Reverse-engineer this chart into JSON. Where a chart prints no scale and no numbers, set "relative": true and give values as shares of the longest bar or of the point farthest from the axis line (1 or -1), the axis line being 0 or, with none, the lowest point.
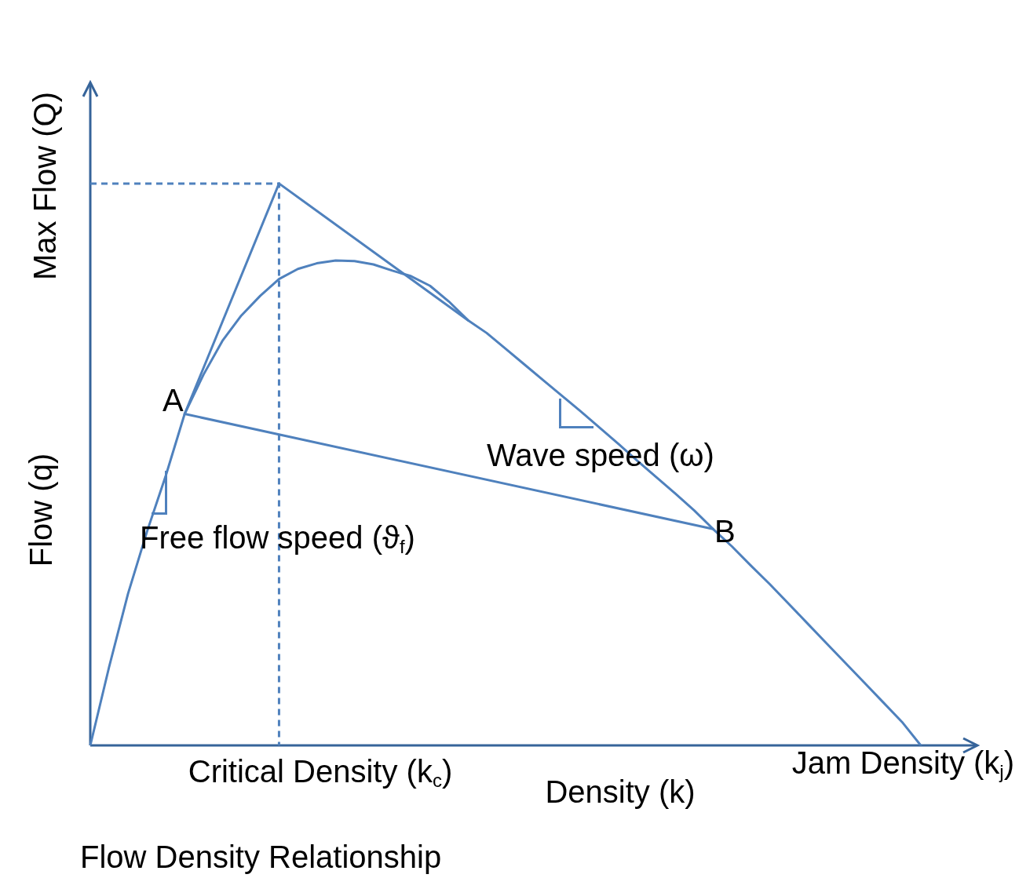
{
  "chart_data": {
    "type": "line",
    "relative": true,
    "title": "Flow Density Relationship",
    "xlabel": "Density (k)",
    "ylabel": "Flow (q)",
    "legend": false,
    "marker": "none",
    "categories": [
      null,
      null,
      null,
      null,
      null,
      null,
      null,
      null,
      null,
      null,
      null,
      null,
      null,
      null,
      null,
      null,
      null,
      null,
      null,
      null,
      null,
      null,
      null,
      null,
      null,
      null,
      null,
      null,
      null,
      null,
      null,
      null,
      null,
      null,
      null,
      null,
      null,
      null,
      null,
      null,
      null,
      null,
      null,
      null,
      null,
      null,
      null,
      null
    ],
    "series": [
      {
        "color": "#4f81bd",
        "values": [
          null,
          null,
          null,
          null,
          null,
          0.59,
          null,
          null,
          null,
          null,
          1,
          null,
          null,
          null,
          null,
          null,
          null,
          null,
          null,
          null,
          0.757,
          null,
          null,
          null,
          null,
          null,
          null,
          null,
          null,
          null,
          null,
          null,
          null,
          null,
          null,
          null,
          null,
          null,
          null,
          null,
          null,
          null,
          null,
          null,
          null,
          null,
          null,
          null
        ]
      },
      {
        "color": "#4f81bd",
        "values": [
          0,
          0.14,
          0.27,
          0.38,
          0.48,
          0.59,
          0.66,
          0.72,
          0.765,
          0.8,
          0.83,
          0.848,
          0.858,
          0.863,
          0.862,
          0.856,
          0.845,
          0.835,
          0.818,
          0.79,
          0.757,
          0.734,
          0.706,
          0.678,
          0.65,
          0.622,
          0.594,
          0.565,
          0.536,
          0.506,
          0.477,
          0.448,
          0.418,
          0.385,
          0.354,
          0.32,
          0.287,
          0.252,
          0.217,
          0.182,
          0.147,
          0.112,
          0.077,
          0.042,
          0,
          null,
          null,
          null
        ]
      },
      {
        "color": "#4f81bd",
        "values": [
          null,
          null,
          null,
          null,
          null,
          0.59,
          null,
          null,
          null,
          null,
          null,
          null,
          null,
          null,
          null,
          null,
          null,
          null,
          null,
          null,
          null,
          null,
          null,
          null,
          null,
          null,
          null,
          null,
          null,
          null,
          null,
          null,
          null,
          0.385,
          null,
          null,
          null,
          null,
          null,
          null,
          null,
          null,
          null,
          null,
          null,
          null,
          null,
          null
        ]
      }
    ],
    "ref_lines": [
      {
        "axis": "y",
        "value": 1,
        "line_style": "dashed",
        "color": "#4f81bd"
      }
    ],
    "annotations": [
      "Max Flow (Q)",
      "Critical Density (k$_{c}$)",
      "Jam Density (k$_{j}$)",
      "A",
      "B",
      "Free flow speed (ϑ$_{f}$)",
      "Wave speed (ω)"
    ]
  }
}
